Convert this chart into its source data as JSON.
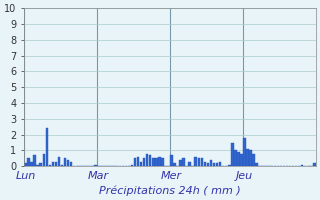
{
  "title": "Précipitations 24h ( mm )",
  "ylabel": "",
  "ylim": [
    0,
    10
  ],
  "yticks": [
    0,
    1,
    2,
    3,
    4,
    5,
    6,
    7,
    8,
    9,
    10
  ],
  "background_color": "#e8f4f8",
  "bar_color": "#3366cc",
  "bar_edge_color": "#2255bb",
  "grid_color": "#aacccc",
  "day_labels": [
    "Lun",
    "Mar",
    "Mer",
    "Jeu"
  ],
  "day_positions": [
    0,
    24,
    48,
    72
  ],
  "total_hours": 96,
  "values": [
    0.2,
    0.5,
    0.3,
    0.7,
    0.1,
    0.2,
    0.8,
    2.4,
    0.1,
    0.3,
    0.3,
    0.6,
    0.1,
    0.5,
    0.4,
    0.3,
    0.0,
    0.0,
    0.0,
    0.0,
    0.0,
    0.0,
    0.0,
    0.1,
    0.0,
    0.0,
    0.0,
    0.0,
    0.0,
    0.0,
    0.0,
    0.0,
    0.0,
    0.0,
    0.0,
    0.1,
    0.5,
    0.6,
    0.3,
    0.5,
    0.8,
    0.7,
    0.5,
    0.5,
    0.6,
    0.5,
    0.0,
    0.0,
    0.7,
    0.2,
    0.0,
    0.4,
    0.5,
    0.0,
    0.3,
    0.0,
    0.6,
    0.5,
    0.5,
    0.3,
    0.2,
    0.4,
    0.2,
    0.2,
    0.3,
    0.0,
    0.0,
    0.1,
    1.5,
    1.0,
    0.9,
    0.8,
    1.8,
    1.1,
    1.0,
    0.8,
    0.2,
    0.0,
    0.0,
    0.0,
    0.0,
    0.0,
    0.0,
    0.0,
    0.0,
    0.0,
    0.0,
    0.0,
    0.0,
    0.0,
    0.0,
    0.1,
    0.0,
    0.0,
    0.0,
    0.2
  ]
}
